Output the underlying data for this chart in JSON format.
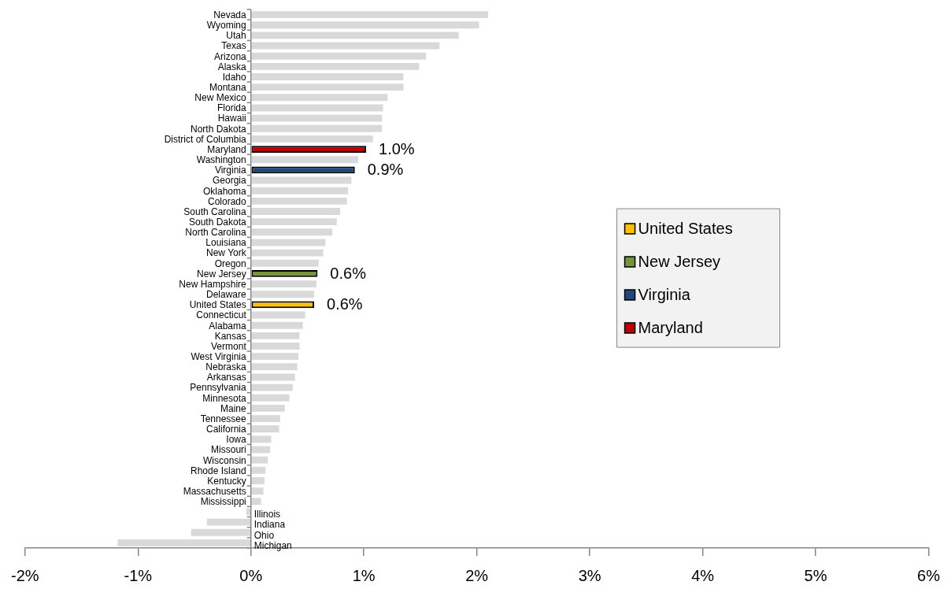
{
  "chart_data": {
    "type": "bar",
    "orientation": "horizontal",
    "stacked": true,
    "categories": [
      "Nevada",
      "Wyoming",
      "Utah",
      "Texas",
      "Arizona",
      "Alaska",
      "Idaho",
      "Montana",
      "New Mexico",
      "Florida",
      "Hawaii",
      "North Dakota",
      "District of Columbia",
      "Maryland",
      "Washington",
      "Virginia",
      "Georgia",
      "Oklahoma",
      "Colorado",
      "South Carolina",
      "South Dakota",
      "North Carolina",
      "Louisiana",
      "New York",
      "Oregon",
      "New Jersey",
      "New Hampshire",
      "Delaware",
      "United States",
      "Connecticut",
      "Alabama",
      "Kansas",
      "Vermont",
      "West Virginia",
      "Nebraska",
      "Arkansas",
      "Pennsylvania",
      "Minnesota",
      "Maine",
      "Tennessee",
      "California",
      "Iowa",
      "Missouri",
      "Wisconsin",
      "Rhode Island",
      "Kentucky",
      "Massachusetts",
      "Mississippi",
      "Illinois",
      "Indiana",
      "Ohio",
      "Michigan"
    ],
    "series": [
      {
        "color": "#d9d9d9",
        "values": [
          2.1,
          2.02,
          1.84,
          1.67,
          1.55,
          1.49,
          1.35,
          1.35,
          1.21,
          1.17,
          1.16,
          1.16,
          1.08,
          null,
          0.95,
          null,
          0.89,
          0.86,
          0.85,
          0.79,
          0.76,
          0.72,
          0.66,
          0.64,
          0.6,
          null,
          0.58,
          0.56,
          null,
          0.48,
          0.46,
          0.43,
          0.43,
          0.42,
          0.41,
          0.39,
          0.37,
          0.34,
          0.3,
          0.26,
          0.25,
          0.18,
          0.17,
          0.15,
          0.13,
          0.12,
          0.11,
          0.09,
          -0.04,
          -0.39,
          -0.53,
          -1.18
        ]
      },
      {
        "name": "United States",
        "color": "#ffc000",
        "values": [
          null,
          null,
          null,
          null,
          null,
          null,
          null,
          null,
          null,
          null,
          null,
          null,
          null,
          null,
          null,
          null,
          null,
          null,
          null,
          null,
          null,
          null,
          null,
          null,
          null,
          null,
          null,
          null,
          0.56,
          null,
          null,
          null,
          null,
          null,
          null,
          null,
          null,
          null,
          null,
          null,
          null,
          null,
          null,
          null,
          null,
          null,
          null,
          null,
          null,
          null,
          null,
          null
        ],
        "value_labels": [
          null,
          null,
          null,
          null,
          null,
          null,
          null,
          null,
          null,
          null,
          null,
          null,
          null,
          null,
          null,
          null,
          null,
          null,
          null,
          null,
          null,
          null,
          null,
          null,
          null,
          null,
          null,
          null,
          "0.6%",
          null,
          null,
          null,
          null,
          null,
          null,
          null,
          null,
          null,
          null,
          null,
          null,
          null,
          null,
          null,
          null,
          null,
          null,
          null,
          null,
          null,
          null,
          null
        ]
      },
      {
        "name": "New Jersey",
        "color": "#77933c",
        "values": [
          null,
          null,
          null,
          null,
          null,
          null,
          null,
          null,
          null,
          null,
          null,
          null,
          null,
          null,
          null,
          null,
          null,
          null,
          null,
          null,
          null,
          null,
          null,
          null,
          null,
          0.59,
          null,
          null,
          null,
          null,
          null,
          null,
          null,
          null,
          null,
          null,
          null,
          null,
          null,
          null,
          null,
          null,
          null,
          null,
          null,
          null,
          null,
          null,
          null,
          null,
          null,
          null
        ],
        "value_labels": [
          null,
          null,
          null,
          null,
          null,
          null,
          null,
          null,
          null,
          null,
          null,
          null,
          null,
          null,
          null,
          null,
          null,
          null,
          null,
          null,
          null,
          null,
          null,
          null,
          null,
          "0.6%",
          null,
          null,
          null,
          null,
          null,
          null,
          null,
          null,
          null,
          null,
          null,
          null,
          null,
          null,
          null,
          null,
          null,
          null,
          null,
          null,
          null,
          null,
          null,
          null,
          null,
          null
        ]
      },
      {
        "name": "Virginia",
        "color": "#1f497d",
        "values": [
          null,
          null,
          null,
          null,
          null,
          null,
          null,
          null,
          null,
          null,
          null,
          null,
          null,
          null,
          null,
          0.92,
          null,
          null,
          null,
          null,
          null,
          null,
          null,
          null,
          null,
          null,
          null,
          null,
          null,
          null,
          null,
          null,
          null,
          null,
          null,
          null,
          null,
          null,
          null,
          null,
          null,
          null,
          null,
          null,
          null,
          null,
          null,
          null,
          null,
          null,
          null,
          null
        ],
        "value_labels": [
          null,
          null,
          null,
          null,
          null,
          null,
          null,
          null,
          null,
          null,
          null,
          null,
          null,
          null,
          null,
          "0.9%",
          null,
          null,
          null,
          null,
          null,
          null,
          null,
          null,
          null,
          null,
          null,
          null,
          null,
          null,
          null,
          null,
          null,
          null,
          null,
          null,
          null,
          null,
          null,
          null,
          null,
          null,
          null,
          null,
          null,
          null,
          null,
          null,
          null,
          null,
          null,
          null
        ]
      },
      {
        "name": "Maryland",
        "color": "#c00000",
        "values": [
          null,
          null,
          null,
          null,
          null,
          null,
          null,
          null,
          null,
          null,
          null,
          null,
          null,
          1.02,
          null,
          null,
          null,
          null,
          null,
          null,
          null,
          null,
          null,
          null,
          null,
          null,
          null,
          null,
          null,
          null,
          null,
          null,
          null,
          null,
          null,
          null,
          null,
          null,
          null,
          null,
          null,
          null,
          null,
          null,
          null,
          null,
          null,
          null,
          null,
          null,
          null,
          null
        ],
        "value_labels": [
          null,
          null,
          null,
          null,
          null,
          null,
          null,
          null,
          null,
          null,
          null,
          null,
          null,
          "1.0%",
          null,
          null,
          null,
          null,
          null,
          null,
          null,
          null,
          null,
          null,
          null,
          null,
          null,
          null,
          null,
          null,
          null,
          null,
          null,
          null,
          null,
          null,
          null,
          null,
          null,
          null,
          null,
          null,
          null,
          null,
          null,
          null,
          null,
          null,
          null,
          null,
          null,
          null
        ]
      }
    ],
    "xlim": [
      -2,
      6
    ],
    "xticks": [
      {
        "value": -2,
        "label": "-2%"
      },
      {
        "value": -1,
        "label": "-1%"
      },
      {
        "value": 0,
        "label": "0%"
      },
      {
        "value": 1,
        "label": "1%"
      },
      {
        "value": 2,
        "label": "2%"
      },
      {
        "value": 3,
        "label": "3%"
      },
      {
        "value": 4,
        "label": "4%"
      },
      {
        "value": 5,
        "label": "5%"
      },
      {
        "value": 6,
        "label": "6%"
      }
    ],
    "grid": false,
    "legend": "right"
  }
}
